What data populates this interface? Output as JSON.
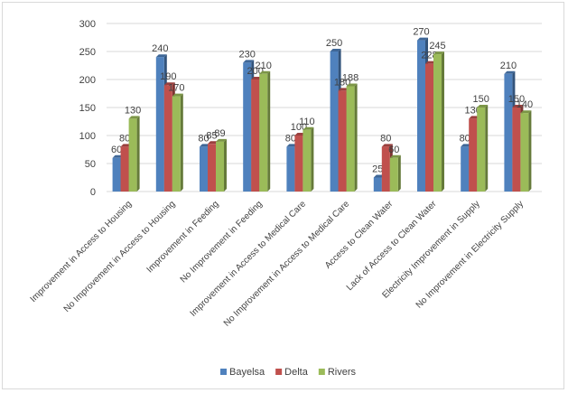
{
  "chart_data": {
    "type": "bar",
    "title": "",
    "xlabel": "",
    "ylabel": "",
    "ylim": [
      0,
      300
    ],
    "yticks": [
      0,
      50,
      100,
      150,
      200,
      250,
      300
    ],
    "grid": true,
    "legend_position": "bottom",
    "categories": [
      "Improvement in Access to Housing",
      "No Improvement in Access to Housing",
      "Improvement in Feeding",
      "No Improvement in Feeding",
      "Improvement in Access to Medical Care",
      "No Improvement in Access to Medical Care",
      "Access to Clean Water",
      "Lack of Access to Clean Water",
      "Electricity Improvement in Supply",
      "No Improvement in Electricity Supply"
    ],
    "series": [
      {
        "name": "Bayelsa",
        "color": "#4f81bd",
        "values": [
          60,
          240,
          80,
          230,
          80,
          250,
          25,
          270,
          80,
          210
        ]
      },
      {
        "name": "Delta",
        "color": "#c0504d",
        "values": [
          80,
          190,
          85,
          200,
          100,
          180,
          80,
          228,
          130,
          150
        ]
      },
      {
        "name": "Rivers",
        "color": "#9bbb59",
        "values": [
          130,
          170,
          89,
          210,
          110,
          188,
          60,
          245,
          150,
          140
        ]
      }
    ]
  }
}
